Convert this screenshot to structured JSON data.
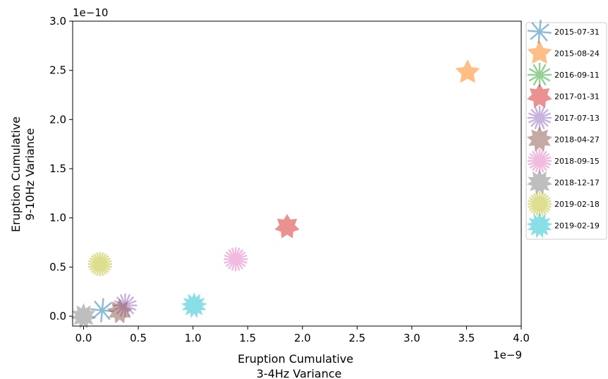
{
  "chart_data": {
    "type": "scatter",
    "xlabel": [
      "Eruption Cumulative",
      "3-4Hz Variance"
    ],
    "ylabel": [
      "Eruption Cumulative",
      "9-10Hz Variance"
    ],
    "x_offset_label": "1e−9",
    "y_offset_label": "1e−10",
    "x_unit_multiplier": 1e-09,
    "y_unit_multiplier": 1e-10,
    "xlim": [
      -1e-10,
      4e-09
    ],
    "ylim": [
      -1e-11,
      3e-10
    ],
    "x_ticks": [
      0.0,
      0.5,
      1.0,
      1.5,
      2.0,
      2.5,
      3.0,
      3.5,
      4.0
    ],
    "x_tick_labels": [
      "0.0",
      "0.5",
      "1.0",
      "1.5",
      "2.0",
      "2.5",
      "3.0",
      "3.5",
      "4.0"
    ],
    "y_ticks": [
      0.0,
      0.5,
      1.0,
      1.5,
      2.0,
      2.5,
      3.0
    ],
    "y_tick_labels": [
      "0.0",
      "0.5",
      "1.0",
      "1.5",
      "2.0",
      "2.5",
      "3.0"
    ],
    "grid": false,
    "legend_position": "outside-right",
    "series": [
      {
        "name": "2015-07-31",
        "x": 1.7e-10,
        "y": 6e-12,
        "color": "#1f77b4",
        "points": 4,
        "filled": false
      },
      {
        "name": "2015-08-24",
        "x": 3.51e-09,
        "y": 2.48e-10,
        "color": "#ff7f0e",
        "points": 5,
        "filled": true
      },
      {
        "name": "2016-09-11",
        "x": null,
        "y": null,
        "color": "#2ca02c",
        "points": 6,
        "filled": false
      },
      {
        "name": "2017-01-31",
        "x": 1.86e-09,
        "y": 9.1e-11,
        "color": "#d62728",
        "points": 7,
        "filled": true
      },
      {
        "name": "2017-07-13",
        "x": 3.8e-10,
        "y": 1.1e-11,
        "color": "#9467bd",
        "points": 8,
        "filled": false
      },
      {
        "name": "2018-04-27",
        "x": 3.3e-10,
        "y": 5e-12,
        "color": "#8c564b",
        "points": 9,
        "filled": true
      },
      {
        "name": "2018-09-15",
        "x": 1.39e-09,
        "y": 5.8e-11,
        "color": "#e377c2",
        "points": 10,
        "filled": false
      },
      {
        "name": "2018-12-17",
        "x": 0.0,
        "y": 0.0,
        "color": "#7f7f7f",
        "points": 11,
        "filled": true
      },
      {
        "name": "2019-02-18",
        "x": 1.5e-10,
        "y": 5.3e-11,
        "color": "#bcbd22",
        "points": 12,
        "filled": false
      },
      {
        "name": "2019-02-19",
        "x": 1.01e-09,
        "y": 1.1e-11,
        "color": "#17becf",
        "points": 13,
        "filled": true
      }
    ]
  }
}
